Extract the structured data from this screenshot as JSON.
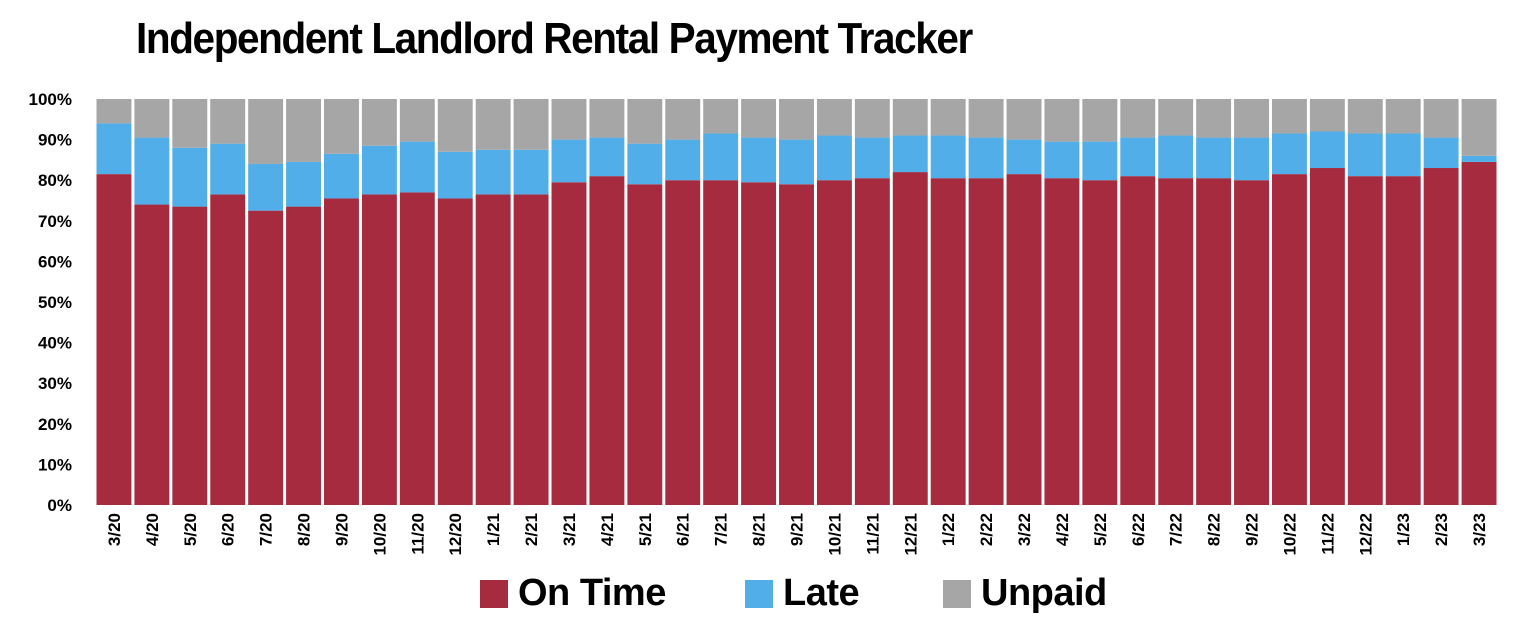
{
  "chart_data": {
    "type": "bar",
    "stacked": true,
    "title": "Independent Landlord Rental Payment Tracker",
    "categories": [
      "3/20",
      "4/20",
      "5/20",
      "6/20",
      "7/20",
      "8/20",
      "9/20",
      "10/20",
      "11/20",
      "12/20",
      "1/21",
      "2/21",
      "3/21",
      "4/21",
      "5/21",
      "6/21",
      "7/21",
      "8/21",
      "9/21",
      "10/21",
      "11/21",
      "12/21",
      "1/22",
      "2/22",
      "3/22",
      "4/22",
      "5/22",
      "6/22",
      "7/22",
      "8/22",
      "9/22",
      "10/22",
      "11/22",
      "12/22",
      "1/23",
      "2/23",
      "3/23"
    ],
    "y_ticks": [
      "0%",
      "10%",
      "20%",
      "30%",
      "40%",
      "50%",
      "60%",
      "70%",
      "80%",
      "90%",
      "100%"
    ],
    "ylim": [
      0,
      100
    ],
    "series": [
      {
        "name": "On Time",
        "color": "#a62b3f",
        "values": [
          81.5,
          74,
          73.5,
          76.5,
          72.5,
          73.5,
          75.5,
          76.5,
          77,
          75.5,
          76.5,
          76.5,
          79.5,
          81,
          79,
          80,
          80,
          79.5,
          79,
          80,
          80.5,
          82,
          80.5,
          80.5,
          81.5,
          80.5,
          80,
          81,
          80.5,
          80.5,
          80,
          81.5,
          83,
          81,
          81,
          83,
          84.5
        ]
      },
      {
        "name": "Late",
        "color": "#52aee8",
        "values": [
          12.5,
          16.5,
          14.5,
          12.5,
          11.5,
          11,
          11,
          12,
          12.5,
          11.5,
          11,
          11,
          10.5,
          9.5,
          10,
          10,
          11.5,
          11,
          11,
          11,
          10,
          9,
          10.5,
          10,
          8.5,
          9,
          9.5,
          9.5,
          10.5,
          10,
          10.5,
          10,
          9,
          10.5,
          10.5,
          7.5,
          1.5
        ]
      },
      {
        "name": "Unpaid",
        "color": "#a6a6a6",
        "values": [
          6,
          9.5,
          12,
          11,
          16,
          15.5,
          13.5,
          11.5,
          10.5,
          13,
          12.5,
          12.5,
          10,
          9.5,
          11,
          10,
          8.5,
          9.5,
          10,
          9,
          9.5,
          9,
          9,
          9.5,
          10,
          10.5,
          10.5,
          9.5,
          9,
          9.5,
          9.5,
          8.5,
          8,
          8.5,
          8.5,
          9.5,
          14
        ]
      }
    ],
    "legend": {
      "position": "bottom",
      "entries": [
        "On Time",
        "Late",
        "Unpaid"
      ]
    },
    "grid": false
  }
}
